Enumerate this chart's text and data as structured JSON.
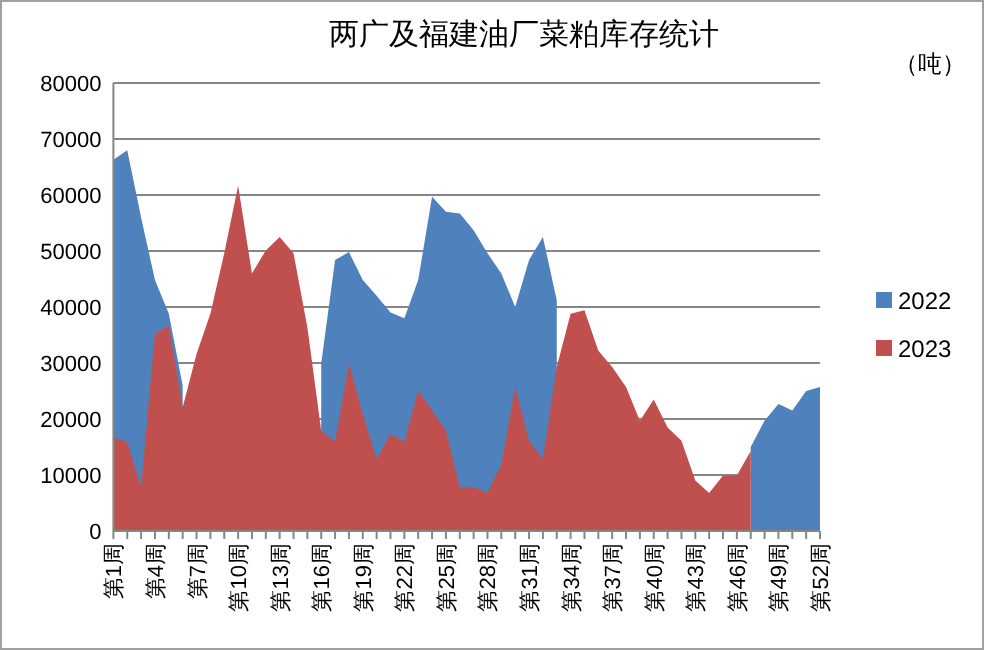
{
  "chart_data": {
    "type": "area",
    "title": "两广及福建油厂菜粕库存统计",
    "annotations": [
      "（吨）"
    ],
    "categories": [
      "第1周",
      null,
      null,
      "第4周",
      null,
      null,
      "第7周",
      null,
      null,
      "第10周",
      null,
      null,
      "第13周",
      null,
      null,
      "第16周",
      null,
      null,
      "第19周",
      null,
      null,
      "第22周",
      null,
      null,
      "第25周",
      null,
      null,
      "第28周",
      null,
      null,
      "第31周",
      null,
      null,
      "第34周",
      null,
      null,
      "第37周",
      null,
      null,
      "第40周",
      null,
      null,
      "第43周",
      null,
      null,
      "第46周",
      null,
      null,
      "第49周",
      null,
      null,
      "第52周"
    ],
    "series": [
      {
        "name": "2022",
        "color": "#4f81bd",
        "values": [
          66300,
          68000,
          56000,
          44800,
          38800,
          26000,
          null,
          null,
          null,
          null,
          null,
          null,
          null,
          null,
          null,
          29900,
          48400,
          49800,
          44800,
          42000,
          39000,
          38000,
          44800,
          59700,
          57000,
          56700,
          53700,
          49600,
          46000,
          40000,
          48400,
          52500,
          41200,
          null,
          null,
          null,
          null,
          null,
          null,
          null,
          null,
          null,
          null,
          null,
          null,
          null,
          15000,
          19700,
          22700,
          21500,
          25000,
          25700
        ]
      },
      {
        "name": "2023",
        "color": "#c0504d",
        "values": [
          16700,
          15900,
          7800,
          35200,
          36700,
          22100,
          31600,
          38800,
          49600,
          61700,
          46000,
          50100,
          52500,
          49600,
          36400,
          17900,
          15900,
          29900,
          20900,
          12800,
          17300,
          15900,
          25100,
          21500,
          17900,
          7800,
          7800,
          6800,
          11900,
          25700,
          16100,
          12800,
          29300,
          38800,
          39400,
          32200,
          29300,
          25700,
          19700,
          23500,
          18500,
          16100,
          9000,
          6800,
          9900,
          9900,
          14300,
          null,
          null,
          null,
          null,
          null
        ]
      }
    ],
    "ylim": [
      0,
      80000
    ],
    "yticks": [
      0,
      10000,
      20000,
      30000,
      40000,
      50000,
      60000,
      70000,
      80000
    ],
    "grid": "y",
    "legend": "right"
  }
}
